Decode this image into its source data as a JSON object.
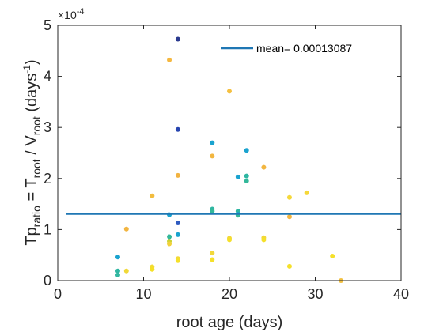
{
  "chart_data": {
    "type": "scatter",
    "xlabel": "root age (days)",
    "ylabel": {
      "p1": "Tp",
      "p1_sub": "ratio",
      "p2": " = T",
      "p2_sub": "root",
      "p3": " / V",
      "p3_sub": "root",
      "p4": " (days",
      "p4_sup": "-1",
      "p5": ")"
    },
    "exponent": "×10",
    "exponent_power": "-4",
    "xlim": [
      0,
      40
    ],
    "ylim": [
      0,
      5
    ],
    "y_scale_factor": 0.0001,
    "x_ticks": [
      "0",
      "10",
      "20",
      "30",
      "40"
    ],
    "y_ticks": [
      "0",
      "1",
      "2",
      "3",
      "4",
      "5"
    ],
    "grid": false,
    "legend_position": "top-right",
    "mean": {
      "label": "mean= 0.00013087",
      "value": 1.3087,
      "x_range": [
        1,
        40
      ],
      "color": "#1f77b4"
    },
    "points": [
      {
        "x": 7,
        "y": 0.46,
        "color": "#1aa3cf"
      },
      {
        "x": 7,
        "y": 0.19,
        "color": "#2fb6a2"
      },
      {
        "x": 7,
        "y": 0.11,
        "color": "#33b7a0"
      },
      {
        "x": 8,
        "y": 1.01,
        "color": "#f2b541"
      },
      {
        "x": 8,
        "y": 0.19,
        "color": "#f0d837"
      },
      {
        "x": 11,
        "y": 1.66,
        "color": "#f2bc3e"
      },
      {
        "x": 11,
        "y": 0.27,
        "color": "#f2dc33"
      },
      {
        "x": 11,
        "y": 0.22,
        "color": "#f5e024"
      },
      {
        "x": 13,
        "y": 4.32,
        "color": "#f5b840"
      },
      {
        "x": 13,
        "y": 1.29,
        "color": "#1aa3cf"
      },
      {
        "x": 13,
        "y": 0.86,
        "color": "#33b89a"
      },
      {
        "x": 13,
        "y": 0.77,
        "color": "#c9d230"
      },
      {
        "x": 13,
        "y": 0.72,
        "color": "#f2d13a"
      },
      {
        "x": 14,
        "y": 4.73,
        "color": "#2a3a8f"
      },
      {
        "x": 14,
        "y": 2.96,
        "color": "#2745b0"
      },
      {
        "x": 14,
        "y": 2.06,
        "color": "#f2b340"
      },
      {
        "x": 14,
        "y": 1.13,
        "color": "#2e5bc0"
      },
      {
        "x": 14,
        "y": 0.9,
        "color": "#1aa3cf"
      },
      {
        "x": 14,
        "y": 0.43,
        "color": "#f2d83a"
      },
      {
        "x": 14,
        "y": 0.39,
        "color": "#f5e02a"
      },
      {
        "x": 18,
        "y": 2.7,
        "color": "#1aa3cf"
      },
      {
        "x": 18,
        "y": 2.44,
        "color": "#f2b640"
      },
      {
        "x": 18,
        "y": 1.4,
        "color": "#2fb6a2"
      },
      {
        "x": 18,
        "y": 1.36,
        "color": "#33b89a"
      },
      {
        "x": 18,
        "y": 0.54,
        "color": "#f2d83a"
      },
      {
        "x": 18,
        "y": 0.41,
        "color": "#f5e02a"
      },
      {
        "x": 20,
        "y": 3.71,
        "color": "#f5c040"
      },
      {
        "x": 20,
        "y": 0.83,
        "color": "#f2d83a"
      },
      {
        "x": 20,
        "y": 0.8,
        "color": "#f5e02a"
      },
      {
        "x": 21,
        "y": 2.03,
        "color": "#1aa3cf"
      },
      {
        "x": 21,
        "y": 1.36,
        "color": "#2fb6a2"
      },
      {
        "x": 21,
        "y": 1.3,
        "color": "#1aa3cf"
      },
      {
        "x": 21,
        "y": 1.28,
        "color": "#33b89a"
      },
      {
        "x": 22,
        "y": 2.55,
        "color": "#1aa3cf"
      },
      {
        "x": 22,
        "y": 2.05,
        "color": "#2fb6a2"
      },
      {
        "x": 22,
        "y": 1.95,
        "color": "#33b89a"
      },
      {
        "x": 24,
        "y": 2.22,
        "color": "#f2b640"
      },
      {
        "x": 24,
        "y": 0.84,
        "color": "#f2d83a"
      },
      {
        "x": 24,
        "y": 0.8,
        "color": "#f5e02a"
      },
      {
        "x": 27,
        "y": 1.63,
        "color": "#f5d83a"
      },
      {
        "x": 27,
        "y": 1.25,
        "color": "#f2b640"
      },
      {
        "x": 27,
        "y": 0.28,
        "color": "#f5e02a"
      },
      {
        "x": 29,
        "y": 1.72,
        "color": "#f5d83a"
      },
      {
        "x": 32,
        "y": 0.48,
        "color": "#f5e02a"
      },
      {
        "x": 33,
        "y": 0.0,
        "color": "#f2c040"
      }
    ]
  }
}
